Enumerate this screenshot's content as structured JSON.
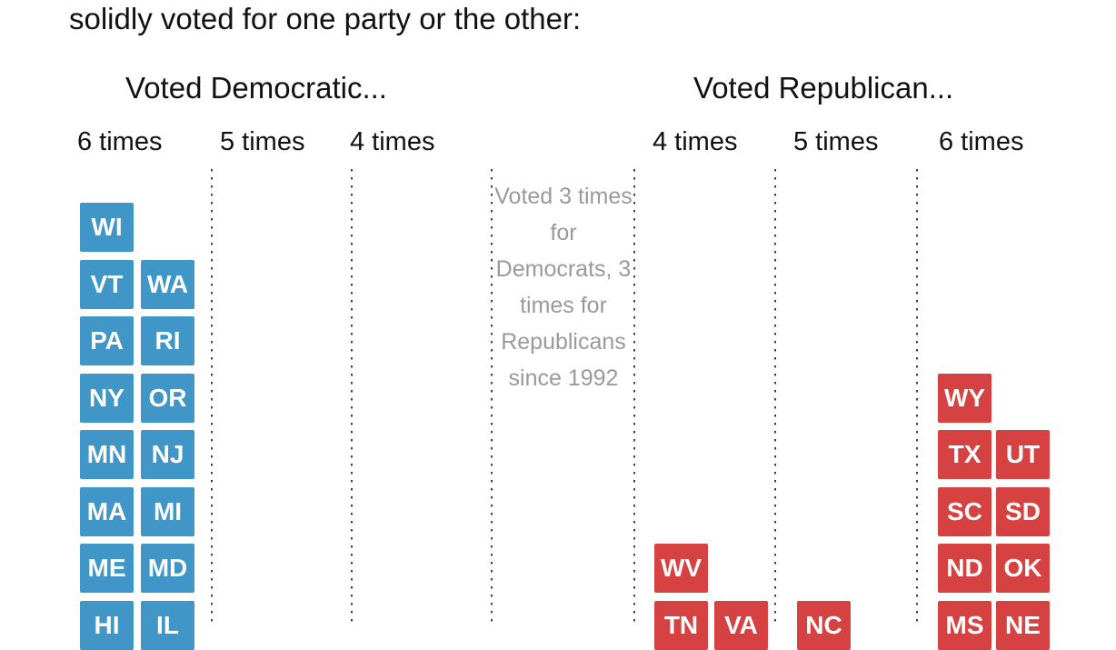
{
  "page": {
    "intro_line": "solidly voted for one party or the other:"
  },
  "dem": {
    "header": "Voted Democratic...",
    "columns": [
      "6 times",
      "5 times",
      "4 times"
    ]
  },
  "rep": {
    "header": "Voted Republican...",
    "columns": [
      "4 times",
      "5 times",
      "6 times"
    ]
  },
  "tie_note": "Voted 3 times for Democrats, 3 times for Republicans since 1992",
  "colors": {
    "dem_blue": "#4096c7",
    "rep_red": "#d64242",
    "note_gray": "#9a9a9a",
    "dot_gray": "#444444"
  },
  "chart_data": {
    "type": "table",
    "title": "solidly voted for one party or the other:",
    "legend_position": "none",
    "grid": "dotted column separators",
    "groups": [
      {
        "name": "Voted Democratic...",
        "color": "#4096c7",
        "columns": [
          {
            "label": "6 times",
            "states_visible": [
              "WI",
              "VT",
              "WA",
              "PA",
              "RI",
              "NY",
              "OR",
              "MN",
              "NJ",
              "MA",
              "MI",
              "ME",
              "MD",
              "HI",
              "IL"
            ]
          },
          {
            "label": "5 times",
            "states_visible": []
          },
          {
            "label": "4 times",
            "states_visible": []
          }
        ]
      },
      {
        "name": "Voted Republican...",
        "color": "#d64242",
        "columns": [
          {
            "label": "4 times",
            "states_visible": [
              "WV",
              "TN",
              "VA"
            ]
          },
          {
            "label": "5 times",
            "states_visible": [
              "NC"
            ]
          },
          {
            "label": "6 times",
            "states_visible": [
              "WY",
              "TX",
              "UT",
              "SC",
              "SD",
              "ND",
              "OK",
              "MS",
              "NE"
            ]
          }
        ]
      }
    ],
    "center_note": "Voted 3 times for Democrats, 3 times for Republicans since 1992",
    "tiles": [
      {
        "state": "WI",
        "party": "dem",
        "col": "dem6a",
        "row": 0
      },
      {
        "state": "VT",
        "party": "dem",
        "col": "dem6a",
        "row": 1
      },
      {
        "state": "WA",
        "party": "dem",
        "col": "dem6b",
        "row": 1
      },
      {
        "state": "PA",
        "party": "dem",
        "col": "dem6a",
        "row": 2
      },
      {
        "state": "RI",
        "party": "dem",
        "col": "dem6b",
        "row": 2
      },
      {
        "state": "NY",
        "party": "dem",
        "col": "dem6a",
        "row": 3
      },
      {
        "state": "OR",
        "party": "dem",
        "col": "dem6b",
        "row": 3
      },
      {
        "state": "MN",
        "party": "dem",
        "col": "dem6a",
        "row": 4
      },
      {
        "state": "NJ",
        "party": "dem",
        "col": "dem6b",
        "row": 4
      },
      {
        "state": "MA",
        "party": "dem",
        "col": "dem6a",
        "row": 5
      },
      {
        "state": "MI",
        "party": "dem",
        "col": "dem6b",
        "row": 5
      },
      {
        "state": "ME",
        "party": "dem",
        "col": "dem6a",
        "row": 6
      },
      {
        "state": "MD",
        "party": "dem",
        "col": "dem6b",
        "row": 6
      },
      {
        "state": "HI",
        "party": "dem",
        "col": "dem6a",
        "row": 7
      },
      {
        "state": "IL",
        "party": "dem",
        "col": "dem6b",
        "row": 7
      },
      {
        "state": "WV",
        "party": "rep",
        "col": "rep4a",
        "row": 6
      },
      {
        "state": "TN",
        "party": "rep",
        "col": "rep4a",
        "row": 7
      },
      {
        "state": "VA",
        "party": "rep",
        "col": "rep4b",
        "row": 7
      },
      {
        "state": "NC",
        "party": "rep",
        "col": "rep5a",
        "row": 7
      },
      {
        "state": "WY",
        "party": "rep",
        "col": "rep6a",
        "row": 3
      },
      {
        "state": "TX",
        "party": "rep",
        "col": "rep6a",
        "row": 4
      },
      {
        "state": "UT",
        "party": "rep",
        "col": "rep6b",
        "row": 4
      },
      {
        "state": "SC",
        "party": "rep",
        "col": "rep6a",
        "row": 5
      },
      {
        "state": "SD",
        "party": "rep",
        "col": "rep6b",
        "row": 5
      },
      {
        "state": "ND",
        "party": "rep",
        "col": "rep6a",
        "row": 6
      },
      {
        "state": "OK",
        "party": "rep",
        "col": "rep6b",
        "row": 6
      },
      {
        "state": "MS",
        "party": "rep",
        "col": "rep6a",
        "row": 7
      },
      {
        "state": "NE",
        "party": "rep",
        "col": "rep6b",
        "row": 7
      }
    ]
  }
}
